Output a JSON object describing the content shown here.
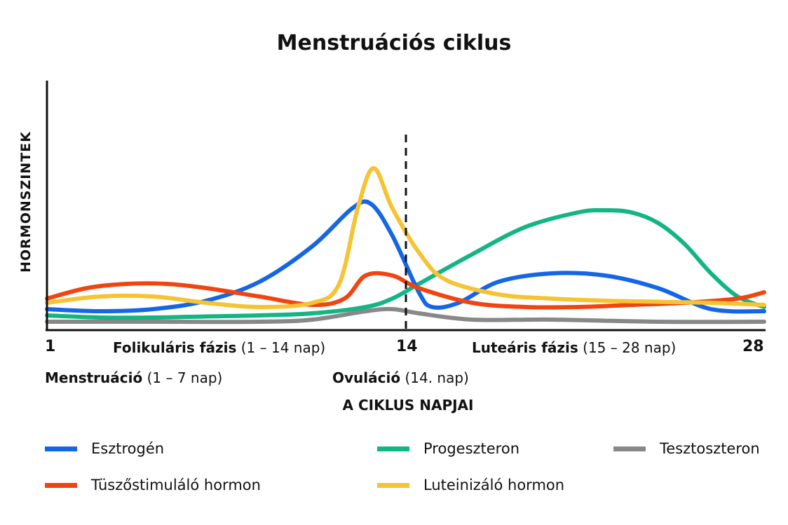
{
  "title": "Menstruációs ciklus",
  "y_axis_label": "HORMONSZINTEK",
  "x_axis_label": "A CIKLUS NAPJAI",
  "ticks": {
    "start": "1",
    "mid": "14",
    "end": "28"
  },
  "phases": {
    "follicular": {
      "name": "Folikuláris fázis",
      "range": "(1 – 14 nap)"
    },
    "luteal": {
      "name": "Luteáris fázis",
      "range": "(15 – 28 nap)"
    },
    "menstruation": {
      "name": "Menstruáció",
      "range": "(1 – 7 nap)"
    },
    "ovulation": {
      "name": "Ovuláció",
      "range": "(14. nap)"
    }
  },
  "chart_data": {
    "type": "line",
    "xlabel": "A CIKLUS NAPJAI",
    "ylabel": "HORMONSZINTEK",
    "xlim": [
      1,
      28
    ],
    "ylim": [
      0,
      100
    ],
    "ovulation_marker_day": 14,
    "series": [
      {
        "name": "Esztrogén",
        "color": "#1565e8",
        "key": "estrogen",
        "x": [
          1,
          3,
          5,
          7,
          9,
          11,
          12.5,
          13.2,
          14,
          15,
          15.5,
          16.5,
          18,
          20,
          22,
          24,
          26,
          28
        ],
        "y": [
          10,
          9,
          10,
          14,
          23,
          40,
          58,
          60,
          45,
          18,
          11,
          13,
          23,
          27,
          26,
          20,
          10,
          9
        ]
      },
      {
        "name": "Progeszteron",
        "color": "#13b585",
        "key": "progesterone",
        "x": [
          1,
          3,
          5,
          7,
          9,
          11,
          13,
          14,
          15,
          17,
          19,
          21,
          22,
          23,
          24,
          25,
          26,
          27,
          28
        ],
        "y": [
          7,
          6,
          6,
          6.5,
          7,
          8,
          11,
          15,
          22,
          36,
          49,
          56,
          57,
          56,
          51,
          41,
          27,
          16,
          11
        ]
      },
      {
        "name": "Tesztoszteron",
        "color": "#888888",
        "key": "testosterone",
        "x": [
          1,
          5,
          9,
          11,
          13,
          14,
          15,
          17,
          20,
          24,
          28
        ],
        "y": [
          4,
          4,
          4,
          5,
          9,
          10,
          8,
          5,
          5,
          4,
          4
        ]
      },
      {
        "name": "Tüszőstimuláló hormon",
        "color": "#f04411",
        "key": "fsh",
        "x": [
          1,
          2.5,
          4,
          5.5,
          7,
          9,
          11,
          12.2,
          13,
          14,
          15,
          17,
          19,
          21,
          23,
          25,
          27,
          28
        ],
        "y": [
          15,
          20,
          22,
          22,
          20,
          16,
          12,
          15,
          26,
          26,
          20,
          13,
          11,
          11,
          12,
          13,
          15,
          18
        ]
      },
      {
        "name": "Luteinizáló hormon",
        "color": "#f5c333",
        "key": "lh",
        "x": [
          1,
          3,
          5,
          7,
          9,
          11,
          12,
          12.7,
          13.3,
          14,
          15,
          16,
          18,
          20,
          22,
          24,
          26,
          28
        ],
        "y": [
          13,
          16,
          16,
          13,
          11,
          13,
          22,
          58,
          77,
          58,
          37,
          24,
          17,
          15,
          14,
          13.5,
          13,
          12
        ]
      }
    ]
  }
}
